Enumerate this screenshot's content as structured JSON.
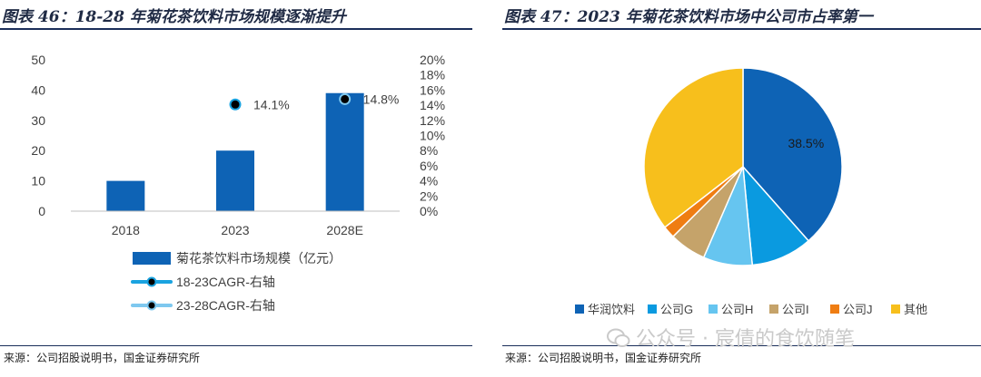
{
  "header": {
    "left_title": "图表 46：18-28 年菊花茶饮料市场规模逐渐提升",
    "right_title": "图表 47：2023 年菊花茶饮料市场中公司市占率第一"
  },
  "footer": {
    "left_source": "来源：公司招股说明书，国金证券研究所",
    "right_source": "来源：公司招股说明书，国金证券研究所"
  },
  "watermark": "公众号 · 宸倩的食饮随笔",
  "chart_data": [
    {
      "type": "bar",
      "categories": [
        "2018",
        "2023",
        "2028E"
      ],
      "series": [
        {
          "name": "菊花茶饮料市场规模（亿元）",
          "axis": "left",
          "values": [
            10,
            20,
            39
          ],
          "color": "#0e63b5"
        },
        {
          "name": "18-23CAGR-右轴",
          "axis": "right",
          "type": "scatter",
          "values": [
            null,
            14.1,
            null
          ],
          "labels": [
            "",
            "14.1%",
            ""
          ],
          "color": "#1aa3e0"
        },
        {
          "name": "23-28CAGR-右轴",
          "axis": "right",
          "type": "scatter",
          "values": [
            null,
            null,
            14.8
          ],
          "labels": [
            "",
            "",
            "14.8%"
          ],
          "color": "#7ec8ef"
        }
      ],
      "left_axis": {
        "ylim": [
          0,
          50
        ],
        "ticks": [
          "0",
          "10",
          "20",
          "30",
          "40",
          "50"
        ]
      },
      "right_axis": {
        "ylim": [
          0,
          20
        ],
        "ticks": [
          "0%",
          "2%",
          "4%",
          "6%",
          "8%",
          "10%",
          "12%",
          "14%",
          "16%",
          "18%",
          "20%"
        ]
      },
      "legend_position": "bottom",
      "grid": false
    },
    {
      "type": "pie",
      "labels": [
        "华润饮料",
        "公司G",
        "公司H",
        "公司I",
        "公司J",
        "其他"
      ],
      "values": [
        38.5,
        10.0,
        8.0,
        6.0,
        2.0,
        35.5
      ],
      "data_labels": [
        "38.5%",
        "",
        "",
        "",
        "",
        ""
      ],
      "colors": [
        "#0e63b5",
        "#0a9ae0",
        "#66c5f0",
        "#c5a36a",
        "#ef7d12",
        "#f7bf1c"
      ],
      "legend_position": "bottom"
    }
  ]
}
